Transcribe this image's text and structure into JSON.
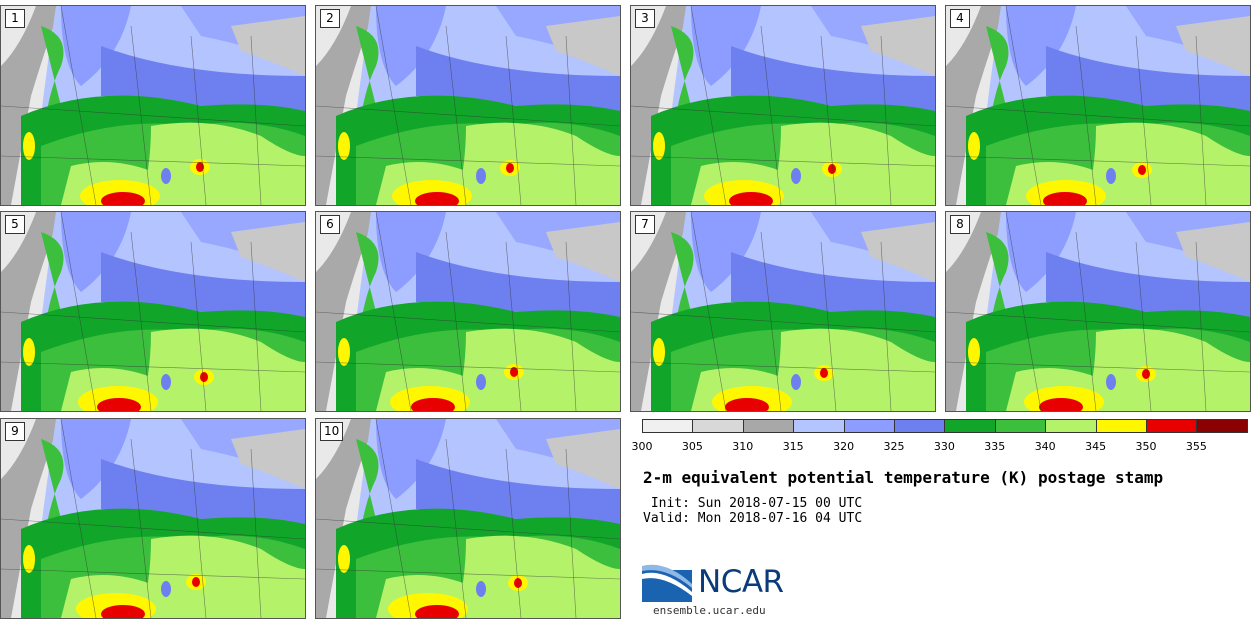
{
  "title": "2-m equivalent potential temperature (K) postage stamp",
  "init": " Init: Sun 2018-07-15 00 UTC",
  "valid": "Valid: Mon 2018-07-16 04 UTC",
  "logo_text": "NCAR",
  "site": "ensemble.ucar.edu",
  "panels": [
    "1",
    "2",
    "3",
    "4",
    "5",
    "6",
    "7",
    "8",
    "9",
    "10"
  ],
  "colorbar": {
    "labels": [
      "300",
      "305",
      "310",
      "315",
      "320",
      "325",
      "330",
      "335",
      "340",
      "345",
      "350",
      "355"
    ],
    "colors": [
      "#f0f0f0",
      "#d8d8d8",
      "#a8a8a8",
      "#b4c4ff",
      "#8c9cff",
      "#6e80f0",
      "#11a62a",
      "#3cbf3c",
      "#b4f26a",
      "#fff700",
      "#e80000",
      "#8b0000"
    ]
  },
  "colors": {
    "ocean": "#e9e9e9",
    "coast_band": "#a9a9a9",
    "light_blue": "#b4c4ff",
    "mid_blue": "#8c9cff",
    "blue": "#6e80f0",
    "dark_green": "#11a62a",
    "green": "#3cbf3c",
    "light_green": "#b4f26a",
    "yellow": "#fff700",
    "red": "#e80000",
    "dark_red": "#8b0000",
    "grey": "#a9a9a9"
  }
}
